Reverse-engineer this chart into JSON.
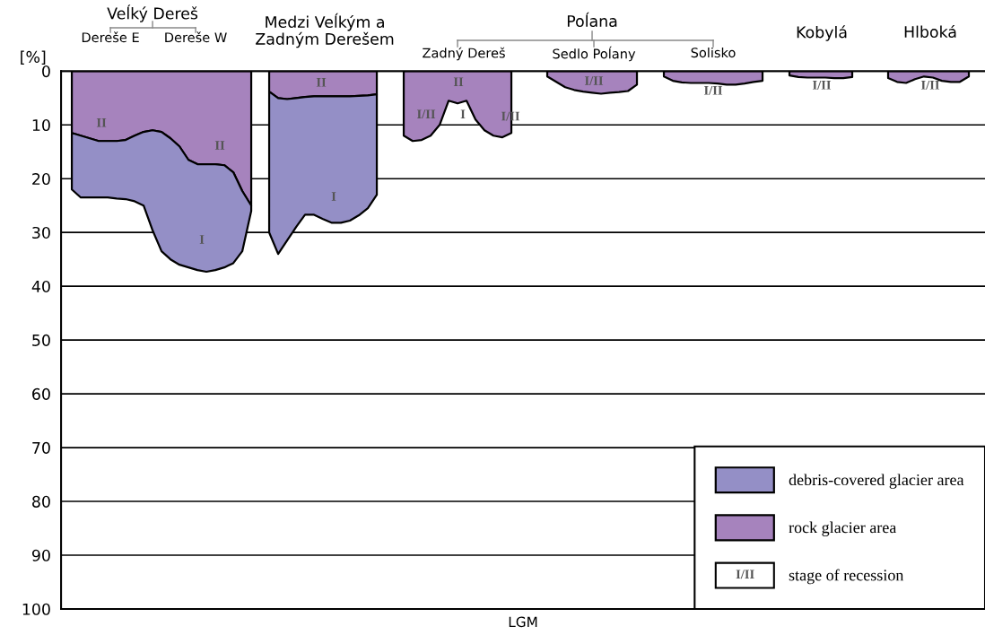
{
  "chart_data": {
    "type": "area",
    "stacked": true,
    "xlabel": "LGM",
    "ylabel": "[%]",
    "categories": [
      null,
      null,
      null,
      null,
      null,
      null,
      null,
      null,
      null,
      null,
      null,
      null,
      null,
      null,
      null,
      null,
      null,
      null,
      null,
      null,
      null,
      null,
      null,
      null,
      null,
      null,
      null,
      null,
      null,
      null,
      null,
      null,
      null,
      null,
      null,
      null,
      null,
      null,
      null,
      null,
      null,
      null,
      null,
      null,
      null,
      null,
      null,
      null,
      null,
      null,
      null,
      null,
      null,
      null,
      null,
      null,
      null,
      null,
      null,
      null,
      null,
      null,
      null,
      null,
      null,
      null,
      null,
      null,
      null,
      null,
      null,
      null,
      null,
      null,
      null,
      null,
      null,
      null,
      null,
      null,
      null,
      null,
      null,
      null,
      null,
      null,
      null,
      null,
      null,
      null,
      null,
      null,
      null,
      null,
      null,
      null,
      null,
      null,
      null,
      null,
      null,
      null,
      null
    ],
    "series": [
      {
        "name": "rock glacier area",
        "color": "#a683bd",
        "values": [
          null,
          11.5,
          12,
          12.5,
          13,
          13,
          13,
          12.8,
          12,
          11.3,
          11,
          11.3,
          12.5,
          14,
          16.5,
          17.3,
          17.3,
          17.3,
          17.5,
          18.8,
          22.3,
          25,
          null,
          3.8,
          5,
          5.2,
          5,
          4.8,
          4.7,
          4.7,
          4.7,
          4.7,
          4.7,
          4.6,
          4.5,
          4.3,
          null,
          null,
          12,
          13,
          12.8,
          12,
          10,
          5.5,
          6,
          5.5,
          9,
          11,
          12,
          12.3,
          11.5,
          null,
          null,
          null,
          1,
          2,
          3,
          3.5,
          3.8,
          4,
          4.2,
          4,
          3.9,
          3.7,
          2.5,
          null,
          null,
          1,
          1.8,
          2.1,
          2.2,
          2.2,
          2.2,
          2.3,
          2.5,
          2.5,
          2.3,
          2,
          1.8,
          null,
          null,
          0.8,
          1.1,
          1.2,
          1.2,
          1.2,
          1.3,
          1.3,
          1.1,
          null,
          null,
          null,
          1.3,
          2,
          2.2,
          1.5,
          1,
          1.2,
          1.8,
          2,
          2,
          1,
          null
        ]
      },
      {
        "name": "debris-covered glacier area",
        "color": "#948fc6",
        "values": [
          null,
          10.5,
          11.5,
          11,
          10.5,
          10.5,
          10.7,
          11,
          12.2,
          13.7,
          18.6,
          22.2,
          22.5,
          22,
          20,
          19.7,
          20,
          19.7,
          19,
          16.9,
          11.2,
          1,
          null,
          26.2,
          29,
          26.3,
          24,
          21.9,
          22,
          22.8,
          23.5,
          23.5,
          23.1,
          22.2,
          21,
          18.7,
          null,
          null,
          null,
          null,
          null,
          null,
          null,
          null,
          null,
          null,
          null,
          null,
          null,
          null,
          null,
          null,
          null,
          null,
          null,
          null,
          null,
          null,
          null,
          null,
          null,
          null,
          null,
          null,
          null,
          null,
          null,
          null,
          null,
          null,
          null,
          null,
          null,
          null,
          null,
          null,
          null,
          null,
          null,
          null,
          null,
          null,
          null,
          null,
          null,
          null,
          null,
          null,
          null,
          null,
          null,
          null,
          null,
          null,
          null,
          null,
          null,
          null,
          null,
          null,
          null,
          null,
          null
        ]
      }
    ],
    "ylim": [
      100,
      0
    ],
    "yticks": [
      0,
      10,
      20,
      30,
      40,
      50,
      60,
      70,
      80,
      90,
      100
    ],
    "grid": "y",
    "legend": "bottom right",
    "annotations": [
      "Veĺký Dereš",
      "Dereše E",
      "Dereše W",
      "Medzi Veĺkým a\nZadným Derešem",
      "Poĺana",
      "Zadný Dereš",
      "Sedlo Poĺany",
      "Solisko",
      "Kobylá",
      "Hlboká",
      "II",
      "II",
      "I",
      "II",
      "I",
      "I/II",
      "II",
      "I",
      "I/II",
      "I/II",
      "I/II",
      "I/II",
      "I/II",
      "I/II",
      "stage of recession"
    ]
  }
}
